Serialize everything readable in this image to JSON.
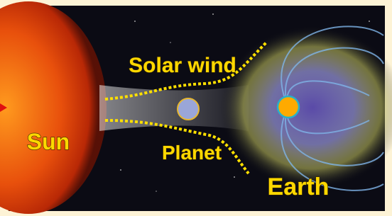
{
  "labels": {
    "solar_wind": "Solar wind",
    "sun": "Sun",
    "planet": "Planet",
    "earth": "Earth"
  }
}
